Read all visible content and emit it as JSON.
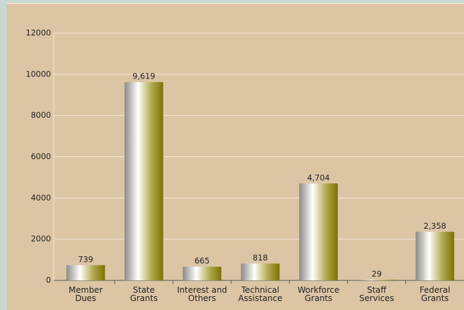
{
  "chart_data": {
    "type": "bar",
    "categories": [
      "Member\nDues",
      "State\nGrants",
      "Interest and\nOthers",
      "Technical\nAssistance",
      "Workforce\nGrants",
      "Staff\nServices",
      "Federal\nGrants"
    ],
    "values": [
      739,
      9619,
      665,
      818,
      4704,
      29,
      2358
    ],
    "value_labels": [
      "739",
      "9,619",
      "665",
      "818",
      "4,704",
      "29",
      "2,358"
    ],
    "ylim": [
      0,
      12000
    ],
    "yticks": [
      0,
      2000,
      4000,
      6000,
      8000,
      10000,
      12000
    ],
    "grid": true
  }
}
